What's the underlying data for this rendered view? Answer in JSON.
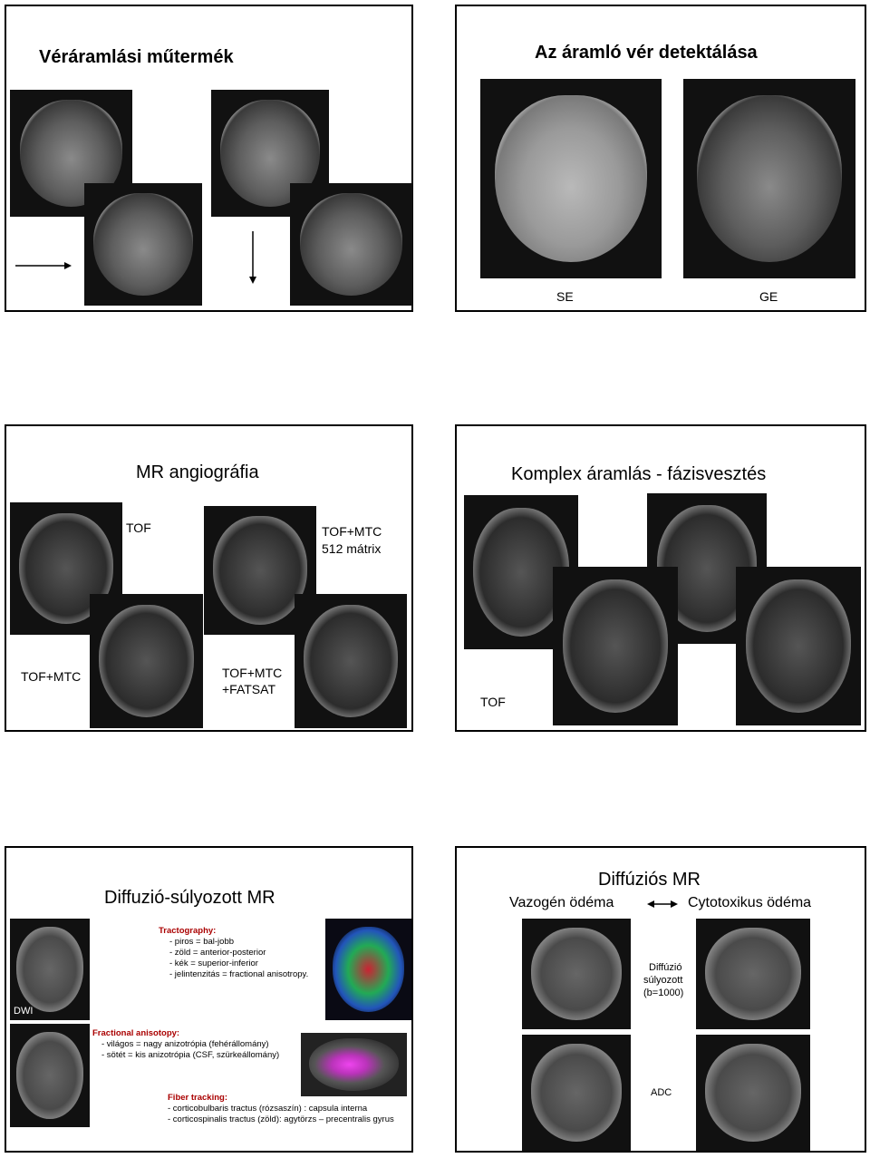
{
  "slide1": {
    "title": "Véráramlási műtermék"
  },
  "slide2": {
    "title": "Az áramló vér detektálása",
    "label_left": "SE",
    "label_right": "GE"
  },
  "slide3": {
    "title": "MR angiográfia",
    "label_tof": "TOF",
    "label_mtc512": [
      "TOF+MTC",
      "512 mátrix"
    ],
    "label_mtc": "TOF+MTC",
    "label_fatsat": [
      "TOF+MTC",
      "+FATSAT"
    ]
  },
  "slide4": {
    "title": "Komplex áramlás - fázisvesztés",
    "label": "TOF"
  },
  "slide5": {
    "title": "Diffuzió-súlyozott MR",
    "dwi": "DWI",
    "tractography": {
      "heading": "Tractography:",
      "lines": [
        "- piros = bal-jobb",
        "- zöld = anterior-posterior",
        "- kék = superior-inferior",
        "- jelintenzitás = fractional anisotropy."
      ]
    },
    "fa": {
      "heading": "Fractional anisotopy:",
      "lines": [
        "- világos = nagy anizotrópia (fehérállomány)",
        "- sötét = kis anizotrópia (CSF, szürkeállomány)"
      ]
    },
    "fiber": {
      "heading": "Fiber tracking:",
      "lines": [
        "- corticobulbaris tractus (rózsaszín) : capsula interna",
        "- corticospinalis tractus (zöld): agytörzs – precentralis gyrus"
      ]
    }
  },
  "slide6": {
    "title": "Diffúziós MR",
    "left": "Vazogén ödéma",
    "right": "Cytotoxikus ödéma",
    "dwi_label": [
      "Diffúzió",
      "súlyozott",
      "(b=1000)"
    ],
    "adc_label": "ADC"
  }
}
